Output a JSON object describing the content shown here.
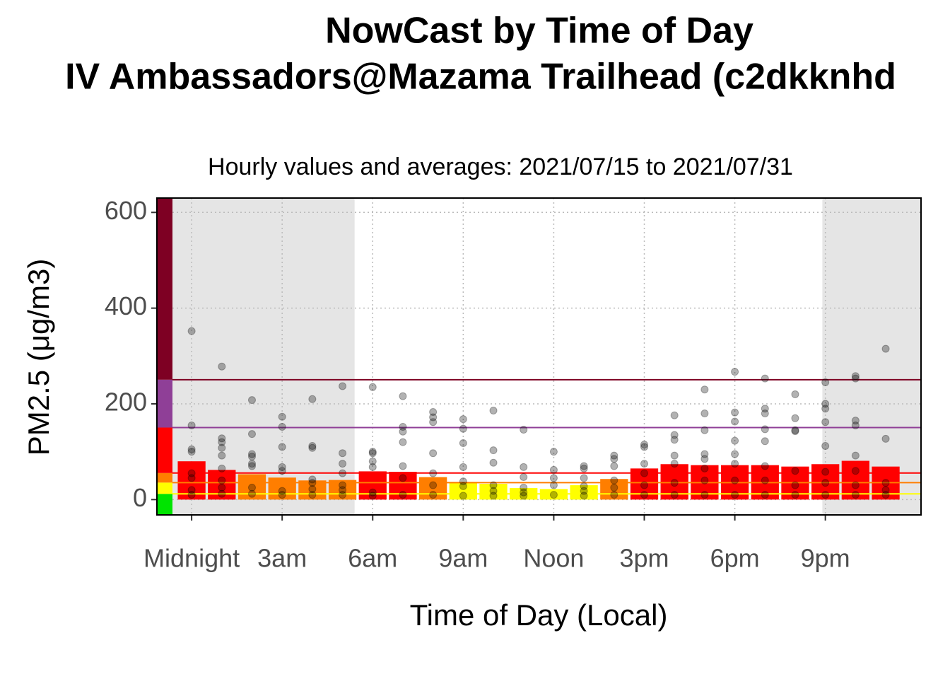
{
  "chart_data": {
    "type": "bar",
    "title": "NowCast by Time of Day",
    "title_line2": "IV Ambassadors@Mazama Trailhead (c2dkknhd",
    "subtitle": "Hourly values and averages: 2021/07/15 to 2021/07/31",
    "x_label": "Time of Day (Local)",
    "y_label": "PM2.5 (μg/m3)",
    "categories": [
      0,
      1,
      2,
      3,
      4,
      5,
      6,
      7,
      8,
      9,
      10,
      11,
      12,
      13,
      14,
      15,
      16,
      17,
      18,
      19,
      20,
      21,
      22,
      23
    ],
    "values": [
      80,
      62,
      53,
      46,
      40,
      41,
      59,
      58,
      47,
      37,
      33,
      24,
      22,
      30,
      43,
      65,
      74,
      72,
      72,
      72,
      69,
      74,
      81,
      69
    ],
    "colors": [
      "#ff0000",
      "#ff0000",
      "#ff7e00",
      "#ff7e00",
      "#ff7e00",
      "#ff7e00",
      "#ff0000",
      "#ff0000",
      "#ff7e00",
      "#ffff00",
      "#ffff00",
      "#ffff00",
      "#ffff00",
      "#ffff00",
      "#ff7e00",
      "#ff0000",
      "#ff0000",
      "#ff0000",
      "#ff0000",
      "#ff0000",
      "#ff0000",
      "#ff0000",
      "#ff0000",
      "#ff0000"
    ],
    "hourly_values": [
      [
        352,
        155,
        105,
        100,
        55,
        45,
        20,
        10
      ],
      [
        278,
        128,
        120,
        108,
        92,
        65,
        40,
        25,
        12
      ],
      [
        208,
        137,
        95,
        90,
        75,
        70,
        25,
        12
      ],
      [
        173,
        152,
        110,
        68,
        60,
        18,
        10
      ],
      [
        210,
        112,
        108,
        42,
        35,
        22,
        10
      ],
      [
        237,
        97,
        75,
        55,
        30,
        20,
        10
      ],
      [
        235,
        100,
        97,
        80,
        68,
        15,
        8
      ],
      [
        216,
        152,
        142,
        120,
        70,
        45,
        10
      ],
      [
        183,
        172,
        162,
        97,
        55,
        30,
        10
      ],
      [
        168,
        148,
        118,
        68,
        38,
        28,
        8
      ],
      [
        186,
        103,
        77,
        30,
        18,
        8
      ],
      [
        146,
        68,
        47,
        25,
        15,
        8
      ],
      [
        100,
        62,
        45,
        30,
        10
      ],
      [
        70,
        65,
        45,
        28,
        18,
        8
      ],
      [
        92,
        85,
        70,
        40,
        25,
        10
      ],
      [
        115,
        110,
        75,
        55,
        30,
        10
      ],
      [
        176,
        135,
        125,
        92,
        75,
        35,
        10
      ],
      [
        230,
        180,
        145,
        95,
        85,
        65,
        40,
        10
      ],
      [
        267,
        182,
        163,
        123,
        95,
        75,
        40,
        10
      ],
      [
        253,
        190,
        180,
        147,
        122,
        70,
        40,
        10
      ],
      [
        220,
        170,
        145,
        143,
        60,
        30,
        10
      ],
      [
        245,
        200,
        190,
        162,
        112,
        58,
        35,
        10
      ],
      [
        258,
        253,
        165,
        155,
        92,
        60,
        30,
        10
      ],
      [
        315,
        127,
        35,
        20,
        10
      ]
    ],
    "aqi_breaks": [
      12,
      35.5,
      55.5,
      150.5,
      250.5
    ],
    "aqi_colors": [
      "#00e400",
      "#ffff00",
      "#ff7e00",
      "#ff0000",
      "#8f3f97",
      "#7e0023"
    ],
    "night_end": 5.4,
    "night_start": 20.9,
    "xlim": [
      -1.15,
      24.17
    ],
    "ylim": [
      -32,
      630
    ],
    "xticks": [
      {
        "value": 0,
        "label": "Midnight"
      },
      {
        "value": 3,
        "label": "3am"
      },
      {
        "value": 6,
        "label": "6am"
      },
      {
        "value": 9,
        "label": "9am"
      },
      {
        "value": 12,
        "label": "Noon"
      },
      {
        "value": 15,
        "label": "3pm"
      },
      {
        "value": 18,
        "label": "6pm"
      },
      {
        "value": 21,
        "label": "9pm"
      }
    ],
    "yticks": [
      0,
      200,
      400,
      600
    ],
    "grid": true
  }
}
